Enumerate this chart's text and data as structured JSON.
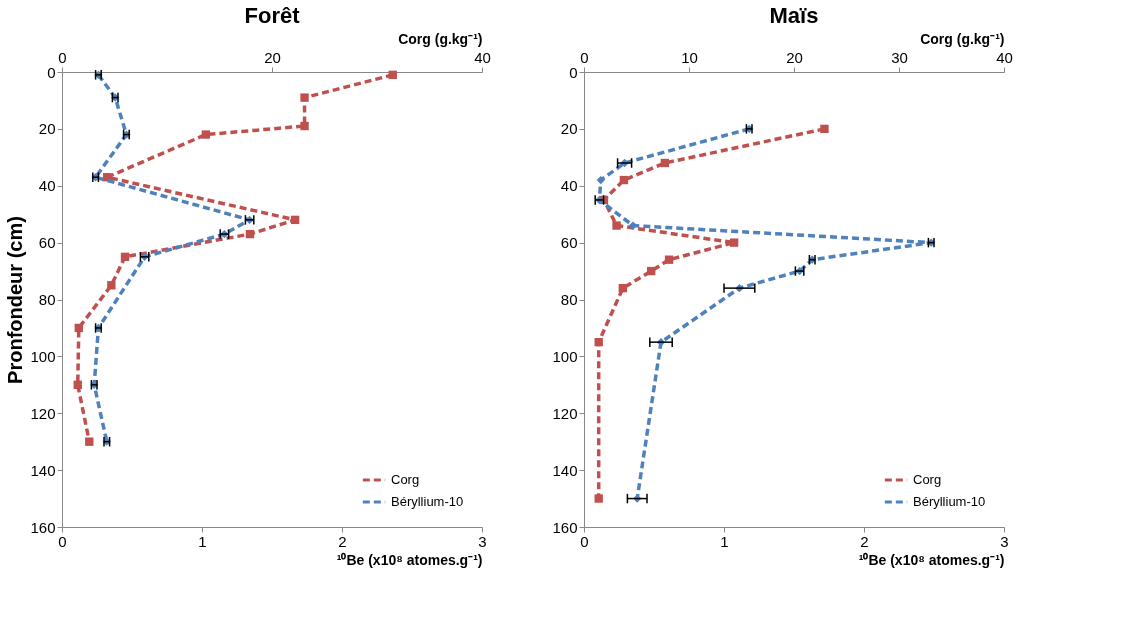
{
  "chart_data": [
    {
      "type": "line",
      "title": "Forêt",
      "ylabel": "Pronfondeur (cm)",
      "xlabel": "¹⁰Be (x10⁸ atomes.g⁻¹)",
      "x2label": "Corg (g.kg⁻¹)",
      "xlim": [
        0,
        3
      ],
      "xticks": [
        0,
        1,
        2,
        3
      ],
      "x2lim": [
        0,
        40
      ],
      "x2ticks": [
        0,
        20,
        40
      ],
      "ylim": [
        160,
        0
      ],
      "yticks": [
        0,
        20,
        40,
        60,
        80,
        100,
        120,
        140,
        160
      ],
      "grid": false,
      "legend": "bottom right",
      "line_style": "dashed",
      "series": [
        {
          "name": "Corg",
          "color": "#c0504d",
          "axis": "x2",
          "marker": "square",
          "x": [
            31.5,
            23.1,
            23.1,
            13.7,
            4.3,
            22.2,
            17.9,
            6.0,
            4.7,
            1.6,
            1.5,
            2.6
          ],
          "values": [
            1,
            9,
            19,
            22,
            37,
            52,
            57,
            65,
            75,
            90,
            110,
            130
          ]
        },
        {
          "name": "Béryllium-10",
          "color": "#4f81bd",
          "marker": "diamond",
          "x": [
            0.26,
            0.38,
            0.46,
            0.24,
            1.34,
            1.16,
            0.59,
            0.26,
            0.23,
            0.32
          ],
          "values": [
            1,
            9,
            22,
            37,
            52,
            57,
            65,
            90,
            110,
            130
          ],
          "xerrors": [
            0.02,
            0.02,
            0.02,
            0.02,
            0.03,
            0.03,
            0.03,
            0.02,
            0.02,
            0.02
          ]
        }
      ]
    },
    {
      "type": "line",
      "title": "Maïs",
      "xlabel": "¹⁰Be (x10⁸ atomes.g⁻¹)",
      "x2label": "Corg (g.kg⁻¹)",
      "xlim": [
        0,
        3
      ],
      "xticks": [
        0,
        1,
        2,
        3
      ],
      "x2lim": [
        0,
        40
      ],
      "x2ticks": [
        0,
        10,
        20,
        30,
        40
      ],
      "ylim": [
        160,
        0
      ],
      "yticks": [
        0,
        20,
        40,
        60,
        80,
        100,
        120,
        140,
        160
      ],
      "grid": false,
      "legend": "bottom right",
      "line_style": "dashed",
      "series": [
        {
          "name": "Corg",
          "color": "#c0504d",
          "axis": "x2",
          "marker": "square",
          "x": [
            22.9,
            7.7,
            3.8,
            1.9,
            3.1,
            14.3,
            8.1,
            6.4,
            3.7,
            1.4,
            1.4
          ],
          "values": [
            20,
            32,
            38,
            45,
            54,
            60,
            66,
            70,
            76,
            95,
            150
          ]
        },
        {
          "name": "Béryllium-10",
          "color": "#4f81bd",
          "marker": "diamond",
          "x": [
            1.18,
            0.29,
            0.12,
            0.11,
            0.35,
            2.48,
            1.63,
            1.54,
            1.11,
            0.55,
            0.38
          ],
          "values": [
            20,
            32,
            38,
            45,
            54,
            60,
            66,
            70,
            76,
            95,
            150
          ],
          "xerrors": [
            0.02,
            0.05,
            null,
            0.03,
            null,
            0.02,
            0.02,
            0.03,
            0.11,
            0.08,
            0.07
          ]
        }
      ]
    }
  ]
}
